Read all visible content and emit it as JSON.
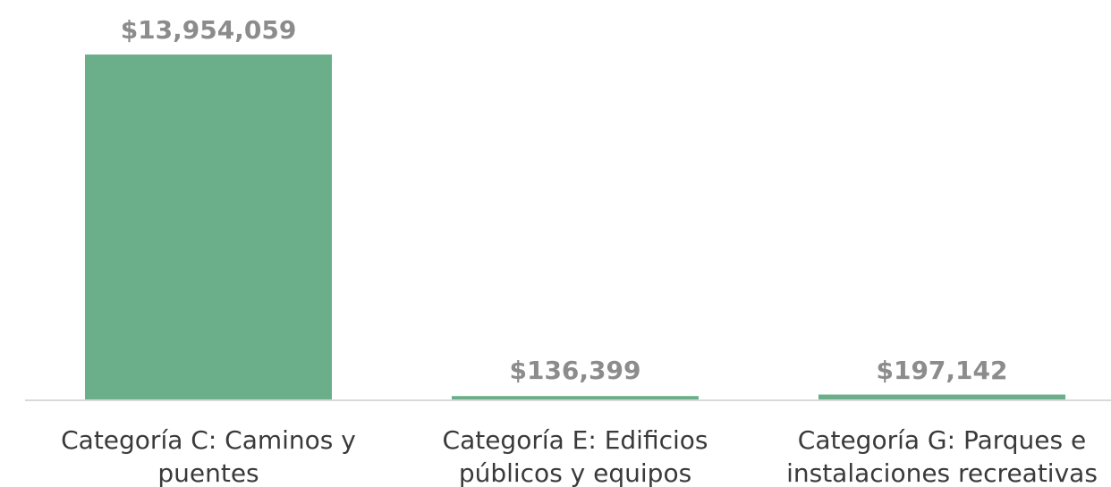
{
  "chart_data": {
    "type": "bar",
    "title": "",
    "xlabel": "",
    "ylabel": "",
    "categories": [
      [
        "Categoría C: Caminos y",
        "puentes"
      ],
      [
        "Categoría E: Edificios",
        "públicos y equipos"
      ],
      [
        "Categoría G: Parques e",
        "instalaciones recreativas"
      ]
    ],
    "values": [
      13954059,
      136399,
      197142
    ],
    "value_labels": [
      "$13,954,059",
      "$136,399",
      "$197,142"
    ],
    "ylim": [
      0,
      13954059
    ],
    "grid": false,
    "legend": "none",
    "colors": {
      "bar": "#6aaf89",
      "value_label": "#8c8c8c",
      "category_label": "#3a3a3a",
      "axis": "#d9d9d9"
    }
  }
}
